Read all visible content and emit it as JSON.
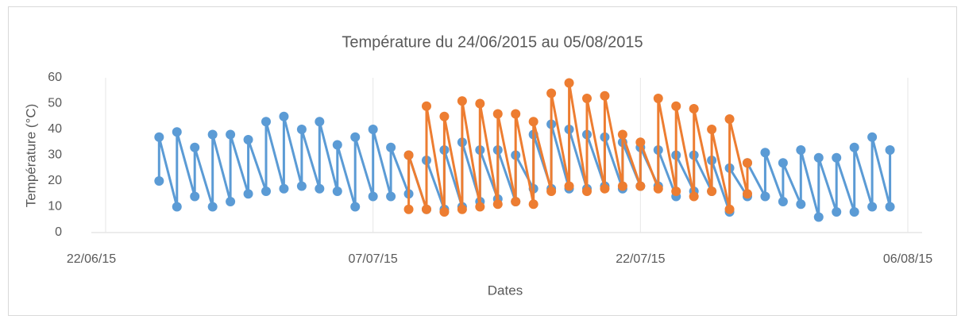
{
  "chart_data": {
    "type": "line",
    "title": "Température du 24/06/2015 au 05/08/2015",
    "x_label": "Dates",
    "y_label": "Température (°C)",
    "xlim": [
      "22/06/15",
      "06/08/15"
    ],
    "xticks": [
      "22/06/15",
      "07/07/15",
      "22/07/15",
      "06/08/15"
    ],
    "ylim": [
      0,
      60
    ],
    "yticks": [
      0,
      10,
      20,
      30,
      40,
      50,
      60
    ],
    "xgrid": true,
    "series": [
      {
        "color": "#5b9bd5",
        "x": [
          "25/06/15",
          "25/06/15",
          "26/06/15",
          "26/06/15",
          "27/06/15",
          "27/06/15",
          "28/06/15",
          "28/06/15",
          "29/06/15",
          "29/06/15",
          "30/06/15",
          "30/06/15",
          "01/07/15",
          "01/07/15",
          "02/07/15",
          "02/07/15",
          "03/07/15",
          "03/07/15",
          "04/07/15",
          "04/07/15",
          "05/07/15",
          "05/07/15",
          "06/07/15",
          "06/07/15",
          "07/07/15",
          "07/07/15",
          "08/07/15",
          "08/07/15",
          "09/07/15",
          "09/07/15",
          "10/07/15",
          "10/07/15",
          "11/07/15",
          "11/07/15",
          "12/07/15",
          "12/07/15",
          "13/07/15",
          "13/07/15",
          "14/07/15",
          "14/07/15",
          "15/07/15",
          "15/07/15",
          "16/07/15",
          "16/07/15",
          "17/07/15",
          "17/07/15",
          "18/07/15",
          "18/07/15",
          "19/07/15",
          "19/07/15",
          "20/07/15",
          "20/07/15",
          "21/07/15",
          "21/07/15",
          "22/07/15",
          "22/07/15",
          "23/07/15",
          "23/07/15",
          "24/07/15",
          "24/07/15",
          "25/07/15",
          "25/07/15",
          "26/07/15",
          "26/07/15",
          "27/07/15",
          "27/07/15",
          "28/07/15",
          "28/07/15",
          "29/07/15",
          "29/07/15",
          "30/07/15",
          "30/07/15",
          "31/07/15",
          "31/07/15",
          "01/08/15",
          "01/08/15",
          "02/08/15",
          "02/08/15",
          "03/08/15",
          "03/08/15",
          "04/08/15",
          "04/08/15",
          "05/08/15",
          "05/08/15"
        ],
        "values": [
          20,
          37,
          10,
          39,
          14,
          33,
          10,
          38,
          12,
          38,
          15,
          36,
          16,
          43,
          17,
          45,
          18,
          40,
          17,
          43,
          16,
          34,
          10,
          37,
          14,
          40,
          14,
          33,
          15,
          30,
          9,
          28,
          9,
          32,
          10,
          35,
          12,
          32,
          13,
          32,
          12,
          30,
          17,
          38,
          17,
          42,
          17,
          40,
          17,
          38,
          18,
          37,
          17,
          35,
          18,
          33,
          18,
          32,
          14,
          30,
          16,
          30,
          16,
          28,
          8,
          25,
          14,
          27,
          14,
          31,
          12,
          27,
          11,
          32,
          6,
          29,
          8,
          29,
          8,
          33,
          10,
          37,
          10,
          32
        ]
      },
      {
        "color": "#ed7d31",
        "x": [
          "09/07/15",
          "09/07/15",
          "10/07/15",
          "10/07/15",
          "11/07/15",
          "11/07/15",
          "12/07/15",
          "12/07/15",
          "13/07/15",
          "13/07/15",
          "14/07/15",
          "14/07/15",
          "15/07/15",
          "15/07/15",
          "16/07/15",
          "16/07/15",
          "17/07/15",
          "17/07/15",
          "18/07/15",
          "18/07/15",
          "19/07/15",
          "19/07/15",
          "20/07/15",
          "20/07/15",
          "21/07/15",
          "21/07/15",
          "22/07/15",
          "22/07/15",
          "23/07/15",
          "23/07/15",
          "24/07/15",
          "24/07/15",
          "25/07/15",
          "25/07/15",
          "26/07/15",
          "26/07/15",
          "27/07/15",
          "27/07/15",
          "28/07/15",
          "28/07/15"
        ],
        "values": [
          9,
          30,
          9,
          49,
          8,
          45,
          9,
          51,
          10,
          50,
          11,
          46,
          12,
          46,
          11,
          43,
          16,
          54,
          18,
          58,
          16,
          52,
          17,
          53,
          18,
          38,
          18,
          35,
          17,
          52,
          16,
          49,
          14,
          48,
          16,
          40,
          9,
          44,
          15,
          27
        ]
      }
    ]
  }
}
